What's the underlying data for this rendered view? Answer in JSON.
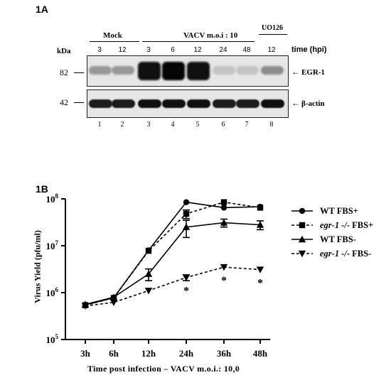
{
  "panel_a": {
    "label": "1A",
    "kda_label": "kDa",
    "group_mock": "Mock",
    "group_vacv": "VACV m.o.i : 10",
    "group_u0126": "UO126",
    "time_label": "time (hpi)",
    "lane_times": [
      "3",
      "12",
      "3",
      "6",
      "12",
      "24",
      "48",
      "12"
    ],
    "lane_numbers": [
      "1",
      "2",
      "3",
      "4",
      "5",
      "6",
      "7",
      "8"
    ],
    "mw_82": "82",
    "mw_42": "42",
    "band_egr1": "EGR-1",
    "band_actin": "β-actin",
    "egr1_intensity": [
      0.35,
      0.35,
      0.95,
      1.0,
      0.95,
      0.15,
      0.15,
      0.4
    ],
    "actin_intensity": [
      0.9,
      0.9,
      0.95,
      0.95,
      0.95,
      0.9,
      0.9,
      0.95
    ]
  },
  "panel_b": {
    "label": "1B",
    "chart_data": {
      "type": "line",
      "categories": [
        "3h",
        "6h",
        "12h",
        "24h",
        "36h",
        "48h"
      ],
      "xlabel": "Time post infection – VACV m.o.i.: 10,0",
      "ylabel": "Virus Yield (pfu/ml)",
      "yscale": "log",
      "ylim": [
        100000,
        100000000
      ],
      "y_ticks": [
        {
          "base": "10",
          "exp": "5",
          "value": 100000
        },
        {
          "base": "10",
          "exp": "6",
          "value": 1000000
        },
        {
          "base": "10",
          "exp": "7",
          "value": 10000000
        },
        {
          "base": "10",
          "exp": "8",
          "value": 100000000
        }
      ],
      "series": [
        {
          "name": "WT FBS+",
          "italic_part": "",
          "marker": "circle",
          "dashed": false,
          "values": [
            550000,
            780000,
            8000000,
            85000000,
            65000000,
            68000000
          ],
          "errors": [
            0,
            0,
            0,
            0,
            0,
            0
          ]
        },
        {
          "name": " FBS+",
          "italic_part": "egr-1 -/-",
          "marker": "square",
          "dashed": true,
          "values": [
            540000,
            770000,
            7800000,
            48000000,
            85000000,
            65000000
          ],
          "errors": [
            0,
            0,
            0,
            10000000,
            0,
            0
          ]
        },
        {
          "name": "WT FBS-",
          "italic_part": "",
          "marker": "triangle-up",
          "dashed": false,
          "values": [
            560000,
            800000,
            2500000,
            25000000,
            31000000,
            28000000
          ],
          "errors": [
            0,
            0,
            700000,
            10000000,
            6000000,
            6000000
          ]
        },
        {
          "name": " FBS-",
          "italic_part": "egr-1 -/-",
          "marker": "triangle-down",
          "dashed": true,
          "values": [
            520000,
            620000,
            1100000,
            2100000,
            3500000,
            3100000
          ],
          "errors": [
            0,
            0,
            0,
            300000,
            0,
            0
          ]
        }
      ],
      "annotations": [
        "*",
        "*",
        "*"
      ]
    }
  }
}
